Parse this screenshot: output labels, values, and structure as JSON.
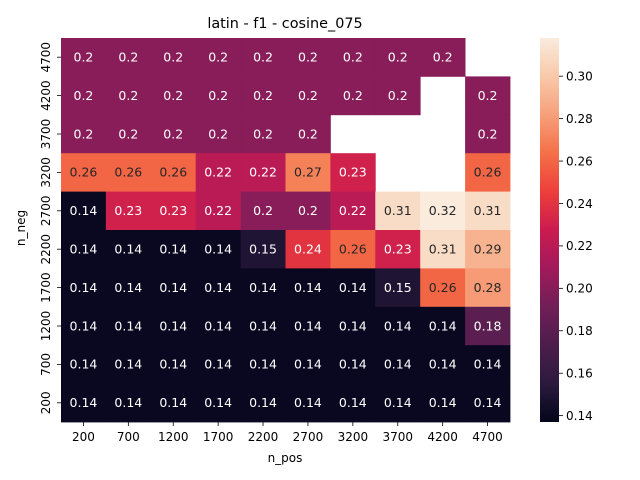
{
  "chart_data": {
    "type": "heatmap",
    "title": "latin - f1 - cosine_075",
    "xlabel": "n_pos",
    "ylabel": "n_neg",
    "x": [
      "200",
      "700",
      "1200",
      "1700",
      "2200",
      "2700",
      "3200",
      "3700",
      "4200",
      "4700"
    ],
    "y": [
      "4700",
      "4200",
      "3700",
      "3200",
      "2700",
      "2200",
      "1700",
      "1200",
      "700",
      "200"
    ],
    "values": [
      [
        0.2,
        0.2,
        0.2,
        0.2,
        0.2,
        0.2,
        0.2,
        0.2,
        0.2,
        null
      ],
      [
        0.2,
        0.2,
        0.2,
        0.2,
        0.2,
        0.2,
        0.2,
        0.2,
        null,
        0.2
      ],
      [
        0.2,
        0.2,
        0.2,
        0.2,
        0.2,
        0.2,
        null,
        null,
        null,
        0.2
      ],
      [
        0.26,
        0.26,
        0.26,
        0.22,
        0.22,
        0.27,
        0.23,
        null,
        null,
        0.26
      ],
      [
        0.14,
        0.23,
        0.23,
        0.22,
        0.2,
        0.2,
        0.22,
        0.31,
        0.32,
        0.31
      ],
      [
        0.14,
        0.14,
        0.14,
        0.14,
        0.15,
        0.24,
        0.26,
        0.23,
        0.31,
        0.29
      ],
      [
        0.14,
        0.14,
        0.14,
        0.14,
        0.14,
        0.14,
        0.14,
        0.15,
        0.26,
        0.28
      ],
      [
        0.14,
        0.14,
        0.14,
        0.14,
        0.14,
        0.14,
        0.14,
        0.14,
        0.14,
        0.18
      ],
      [
        0.14,
        0.14,
        0.14,
        0.14,
        0.14,
        0.14,
        0.14,
        0.14,
        0.14,
        0.14
      ],
      [
        0.14,
        0.14,
        0.14,
        0.14,
        0.14,
        0.14,
        0.14,
        0.14,
        0.14,
        0.14
      ]
    ],
    "colorbar": {
      "range": [
        0.137,
        0.318
      ],
      "ticks": [
        "0.14",
        "0.16",
        "0.18",
        "0.20",
        "0.22",
        "0.24",
        "0.26",
        "0.28",
        "0.30"
      ],
      "colormap": "rocket",
      "stops": [
        "#03051a",
        "#2b1a3e",
        "#4c1d4b",
        "#701f57",
        "#a11a5b",
        "#cb1b4f",
        "#ed3f3a",
        "#f47048",
        "#f6a07a",
        "#f8c9a9",
        "#faebdd"
      ]
    },
    "legend": "colorbar-right",
    "grid": false
  }
}
